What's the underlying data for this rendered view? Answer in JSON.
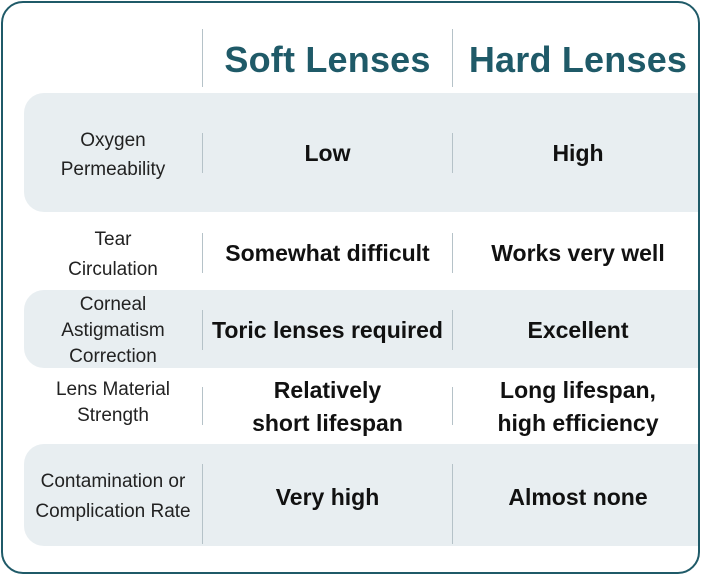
{
  "header": {
    "soft": "Soft Lenses",
    "hard": "Hard Lenses"
  },
  "rows": [
    {
      "label": "Oxygen\nPermeability",
      "soft": "Low",
      "hard": "High"
    },
    {
      "label": "Tear\nCirculation",
      "soft": "Somewhat difficult",
      "hard": "Works very well"
    },
    {
      "label": "Corneal\nAstigmatism\nCorrection",
      "soft": "Toric lenses required",
      "hard": "Excellent"
    },
    {
      "label": "Lens Material\nStrength",
      "soft": "Relatively\nshort lifespan",
      "hard": "Long lifespan,\nhigh efficiency"
    },
    {
      "label": "Contamination or\nComplication Rate",
      "soft": "Very high",
      "hard": "Almost none"
    }
  ],
  "colors": {
    "accent": "#1f5a68",
    "shaded_row": "#e8eef1"
  }
}
